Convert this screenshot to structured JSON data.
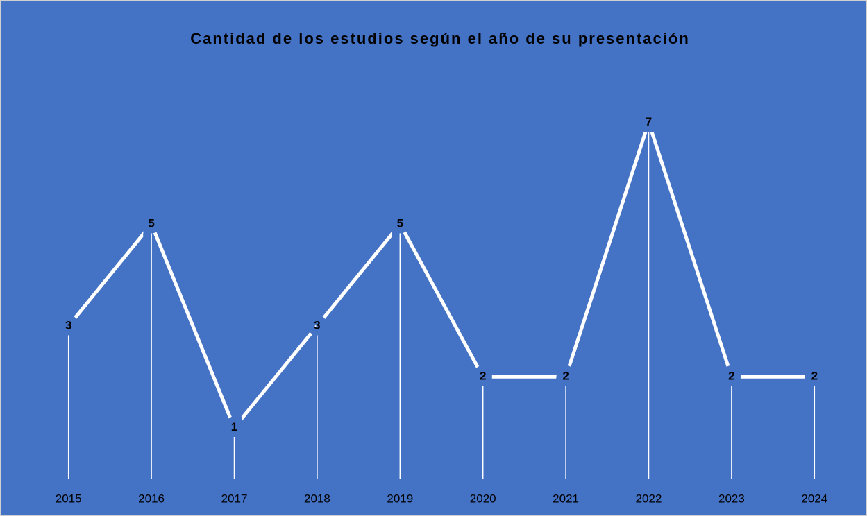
{
  "chart_data": {
    "type": "line",
    "title": "Cantidad de los estudios según el año de su presentación",
    "categories": [
      "2015",
      "2016",
      "2017",
      "2018",
      "2019",
      "2020",
      "2021",
      "2022",
      "2023",
      "2024"
    ],
    "values": [
      3,
      5,
      1,
      3,
      5,
      2,
      2,
      7,
      2,
      2
    ],
    "color": "#ffffff",
    "background": "#4472c4",
    "ylim": [
      0,
      8
    ],
    "drop_lines": true,
    "data_labels": true
  }
}
